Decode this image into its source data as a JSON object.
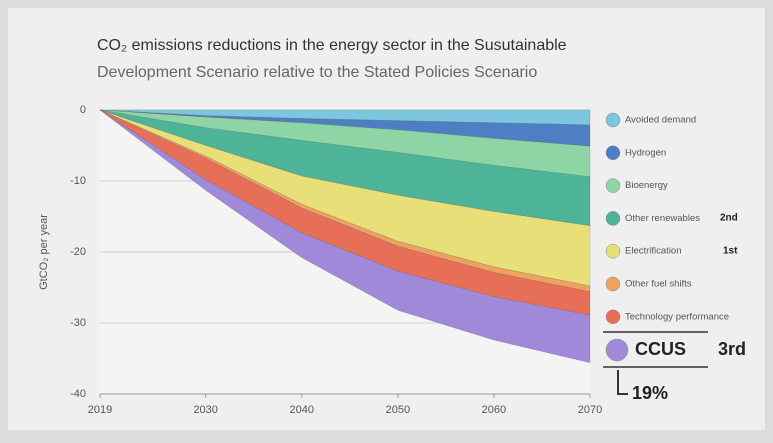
{
  "chart_data": {
    "type": "stacked_area",
    "title": "CO₂ emissions reductions in the energy sector in the Susutainable",
    "subtitle": "Development Scenario relative to the Stated Policies Scenario",
    "y_label": "GtCO₂ per year",
    "x": [
      2019,
      2030,
      2040,
      2050,
      2060,
      2070
    ],
    "xlim": [
      2019,
      2070
    ],
    "xticks": [
      2019,
      2030,
      2040,
      2050,
      2060,
      2070
    ],
    "ylim": [
      -40,
      0
    ],
    "yticks": [
      0,
      -10,
      -20,
      -30,
      -40
    ],
    "grid": true,
    "series": [
      {
        "name": "Avoided demand",
        "color": "#7cc6df",
        "values": [
          0,
          -0.8,
          -1.2,
          -1.5,
          -1.8,
          -2.1
        ]
      },
      {
        "name": "Hydrogen",
        "color": "#4e7ec3",
        "values": [
          0,
          -0.2,
          -0.6,
          -1.3,
          -2.2,
          -3.0
        ]
      },
      {
        "name": "Bioenergy",
        "color": "#8ed5a6",
        "values": [
          0,
          -1.5,
          -2.5,
          -3.2,
          -3.8,
          -4.3
        ]
      },
      {
        "name": "Other renewables",
        "color": "#4db497",
        "values": [
          0,
          -2.5,
          -5.0,
          -6.0,
          -6.5,
          -6.9
        ]
      },
      {
        "name": "Electrification",
        "color": "#e8df78",
        "values": [
          0,
          -1.5,
          -4.0,
          -6.5,
          -7.8,
          -8.5
        ]
      },
      {
        "name": "Other fuel shifts",
        "color": "#efa25f",
        "values": [
          0,
          -0.3,
          -0.5,
          -0.7,
          -0.8,
          -0.8
        ]
      },
      {
        "name": "Technology performance",
        "color": "#e76f58",
        "values": [
          0,
          -3.0,
          -3.5,
          -3.5,
          -3.4,
          -3.3
        ]
      },
      {
        "name": "CCUS",
        "color": "#a089d8",
        "values": [
          0,
          -1.5,
          -3.5,
          -5.5,
          -6.1,
          -6.7
        ]
      }
    ],
    "annotations": [
      "2nd",
      "1st",
      "3rd",
      "19%"
    ]
  }
}
